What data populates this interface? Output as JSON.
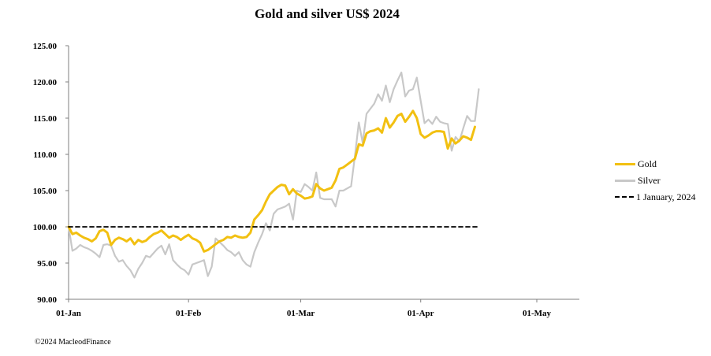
{
  "chart_data": {
    "type": "line",
    "title": "Gold and silver  US$ 2024",
    "ylim": [
      90,
      125
    ],
    "yticks": [
      "90.00",
      "95.00",
      "100.00",
      "105.00",
      "110.00",
      "115.00",
      "120.00",
      "125.00"
    ],
    "xticks": [
      {
        "label": "01-Jan",
        "day": 1
      },
      {
        "label": "01-Feb",
        "day": 32
      },
      {
        "label": "01-Mar",
        "day": 61
      },
      {
        "label": "01-Apr",
        "day": 92
      },
      {
        "label": "01-May",
        "day": 122
      }
    ],
    "x_range": [
      1,
      133
    ],
    "legend_position": "right",
    "series": [
      {
        "name": "Gold",
        "color": "#f2c011",
        "points": [
          [
            1,
            100.0
          ],
          [
            2,
            99.0
          ],
          [
            3,
            99.2
          ],
          [
            4,
            98.8
          ],
          [
            5,
            98.5
          ],
          [
            6,
            98.3
          ],
          [
            7,
            98.0
          ],
          [
            8,
            98.4
          ],
          [
            9,
            99.4
          ],
          [
            10,
            99.6
          ],
          [
            11,
            99.2
          ],
          [
            12,
            97.5
          ],
          [
            13,
            98.2
          ],
          [
            14,
            98.5
          ],
          [
            15,
            98.3
          ],
          [
            16,
            98.0
          ],
          [
            17,
            98.4
          ],
          [
            18,
            97.6
          ],
          [
            19,
            98.2
          ],
          [
            20,
            97.9
          ],
          [
            21,
            98.1
          ],
          [
            22,
            98.6
          ],
          [
            23,
            99.0
          ],
          [
            24,
            99.2
          ],
          [
            25,
            99.5
          ],
          [
            26,
            99.0
          ],
          [
            27,
            98.5
          ],
          [
            28,
            98.8
          ],
          [
            29,
            98.6
          ],
          [
            30,
            98.2
          ],
          [
            31,
            98.6
          ],
          [
            32,
            98.9
          ],
          [
            33,
            98.4
          ],
          [
            34,
            98.2
          ],
          [
            35,
            97.8
          ],
          [
            36,
            96.6
          ],
          [
            37,
            96.8
          ],
          [
            38,
            97.2
          ],
          [
            39,
            97.6
          ],
          [
            40,
            98.0
          ],
          [
            41,
            98.2
          ],
          [
            42,
            98.6
          ],
          [
            43,
            98.5
          ],
          [
            44,
            98.8
          ],
          [
            45,
            98.6
          ],
          [
            46,
            98.5
          ],
          [
            47,
            98.6
          ],
          [
            48,
            99.2
          ],
          [
            49,
            101.0
          ],
          [
            50,
            101.6
          ],
          [
            51,
            102.3
          ],
          [
            52,
            103.5
          ],
          [
            53,
            104.5
          ],
          [
            54,
            105.0
          ],
          [
            55,
            105.5
          ],
          [
            56,
            105.8
          ],
          [
            57,
            105.7
          ],
          [
            58,
            104.5
          ],
          [
            59,
            105.2
          ],
          [
            60,
            104.6
          ],
          [
            61,
            104.3
          ],
          [
            62,
            103.9
          ],
          [
            63,
            104.0
          ],
          [
            64,
            104.2
          ],
          [
            65,
            105.9
          ],
          [
            66,
            105.3
          ],
          [
            67,
            105.0
          ],
          [
            68,
            105.2
          ],
          [
            69,
            105.4
          ],
          [
            70,
            106.4
          ],
          [
            71,
            108.0
          ],
          [
            72,
            108.2
          ],
          [
            73,
            108.6
          ],
          [
            74,
            109.0
          ],
          [
            75,
            109.4
          ],
          [
            76,
            111.4
          ],
          [
            77,
            111.2
          ],
          [
            78,
            112.9
          ],
          [
            79,
            113.2
          ],
          [
            80,
            113.3
          ],
          [
            81,
            113.6
          ],
          [
            82,
            113.0
          ],
          [
            83,
            115.0
          ],
          [
            84,
            113.7
          ],
          [
            85,
            114.4
          ],
          [
            86,
            115.3
          ],
          [
            87,
            115.6
          ],
          [
            88,
            114.5
          ],
          [
            89,
            115.2
          ],
          [
            90,
            116.0
          ],
          [
            91,
            115.0
          ],
          [
            92,
            112.8
          ],
          [
            93,
            112.3
          ],
          [
            94,
            112.6
          ],
          [
            95,
            113.0
          ],
          [
            96,
            113.2
          ],
          [
            97,
            113.2
          ],
          [
            98,
            113.1
          ],
          [
            99,
            110.8
          ],
          [
            100,
            112.2
          ],
          [
            101,
            111.5
          ],
          [
            102,
            111.9
          ],
          [
            103,
            112.5
          ],
          [
            104,
            112.3
          ],
          [
            105,
            112.0
          ],
          [
            106,
            113.8
          ]
        ]
      },
      {
        "name": "Silver",
        "color": "#c8c8c8",
        "points": [
          [
            1,
            100.0
          ],
          [
            2,
            96.7
          ],
          [
            3,
            97.0
          ],
          [
            4,
            97.5
          ],
          [
            5,
            97.2
          ],
          [
            6,
            97.0
          ],
          [
            7,
            96.7
          ],
          [
            8,
            96.3
          ],
          [
            9,
            95.8
          ],
          [
            10,
            97.5
          ],
          [
            11,
            97.6
          ],
          [
            12,
            97.4
          ],
          [
            13,
            96.0
          ],
          [
            14,
            95.2
          ],
          [
            15,
            95.4
          ],
          [
            16,
            94.6
          ],
          [
            17,
            94.0
          ],
          [
            18,
            93.0
          ],
          [
            19,
            94.2
          ],
          [
            20,
            95.0
          ],
          [
            21,
            96.0
          ],
          [
            22,
            95.8
          ],
          [
            23,
            96.4
          ],
          [
            24,
            97.0
          ],
          [
            25,
            97.4
          ],
          [
            26,
            96.2
          ],
          [
            27,
            97.6
          ],
          [
            28,
            95.4
          ],
          [
            29,
            94.8
          ],
          [
            30,
            94.3
          ],
          [
            31,
            94.0
          ],
          [
            32,
            93.4
          ],
          [
            33,
            94.8
          ],
          [
            34,
            95.0
          ],
          [
            35,
            95.2
          ],
          [
            36,
            95.4
          ],
          [
            37,
            93.2
          ],
          [
            38,
            94.5
          ],
          [
            39,
            98.4
          ],
          [
            40,
            97.9
          ],
          [
            41,
            97.4
          ],
          [
            42,
            96.8
          ],
          [
            43,
            96.5
          ],
          [
            44,
            96.0
          ],
          [
            45,
            96.5
          ],
          [
            46,
            95.4
          ],
          [
            47,
            94.8
          ],
          [
            48,
            94.5
          ],
          [
            49,
            96.5
          ],
          [
            50,
            97.8
          ],
          [
            51,
            99.0
          ],
          [
            52,
            100.5
          ],
          [
            53,
            99.5
          ],
          [
            54,
            101.8
          ],
          [
            55,
            102.4
          ],
          [
            56,
            102.6
          ],
          [
            57,
            102.8
          ],
          [
            58,
            103.2
          ],
          [
            59,
            101.0
          ],
          [
            60,
            105.0
          ],
          [
            61,
            104.8
          ],
          [
            62,
            105.9
          ],
          [
            63,
            105.5
          ],
          [
            64,
            105.0
          ],
          [
            65,
            107.5
          ],
          [
            66,
            104.0
          ],
          [
            67,
            103.8
          ],
          [
            68,
            103.8
          ],
          [
            69,
            103.8
          ],
          [
            70,
            102.8
          ],
          [
            71,
            105.0
          ],
          [
            72,
            105.0
          ],
          [
            73,
            105.3
          ],
          [
            74,
            105.6
          ],
          [
            75,
            109.8
          ],
          [
            76,
            114.4
          ],
          [
            77,
            111.6
          ],
          [
            78,
            115.6
          ],
          [
            79,
            116.3
          ],
          [
            80,
            117.0
          ],
          [
            81,
            118.3
          ],
          [
            82,
            117.4
          ],
          [
            83,
            119.5
          ],
          [
            84,
            117.2
          ],
          [
            85,
            119.0
          ],
          [
            86,
            120.2
          ],
          [
            87,
            121.3
          ],
          [
            88,
            118.0
          ],
          [
            89,
            118.8
          ],
          [
            90,
            119.0
          ],
          [
            91,
            120.6
          ],
          [
            92,
            117.4
          ],
          [
            93,
            114.3
          ],
          [
            94,
            114.8
          ],
          [
            95,
            114.2
          ],
          [
            96,
            115.2
          ],
          [
            97,
            114.5
          ],
          [
            98,
            114.3
          ],
          [
            99,
            114.2
          ],
          [
            100,
            110.5
          ],
          [
            101,
            112.4
          ],
          [
            102,
            111.8
          ],
          [
            103,
            113.6
          ],
          [
            104,
            115.3
          ],
          [
            105,
            114.6
          ],
          [
            106,
            114.6
          ],
          [
            107,
            119.0
          ]
        ]
      },
      {
        "name": "1 January, 2024",
        "color": "#000000",
        "style": "dashed",
        "points": [
          [
            1,
            100.0
          ],
          [
            107,
            100.0
          ]
        ]
      }
    ]
  },
  "legend": {
    "gold": "Gold",
    "silver": "Silver",
    "reference": "1 January, 2024"
  },
  "footer": {
    "copyright": "©2024 MacleodFinance"
  }
}
